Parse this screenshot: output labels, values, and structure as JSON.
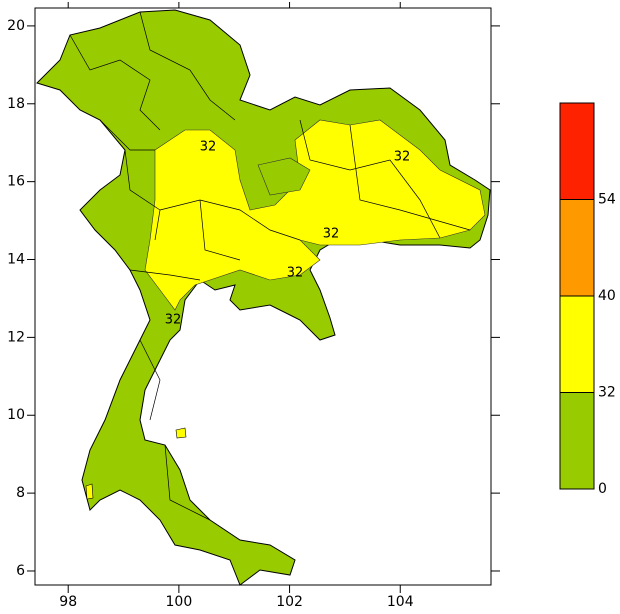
{
  "map": {
    "xlim": [
      97.4,
      105.64
    ],
    "ylim": [
      5.64,
      20.46
    ],
    "xticks": [
      98,
      100,
      102,
      104
    ],
    "yticks": [
      6,
      8,
      10,
      12,
      14,
      16,
      18,
      20
    ],
    "contour_labels": [
      "32",
      "32",
      "32",
      "32",
      "32"
    ],
    "colorbar": {
      "levels": [
        0,
        32,
        40,
        54
      ],
      "colors": [
        "#99cc00",
        "#ffff00",
        "#ff9900",
        "#ff2200"
      ]
    }
  }
}
